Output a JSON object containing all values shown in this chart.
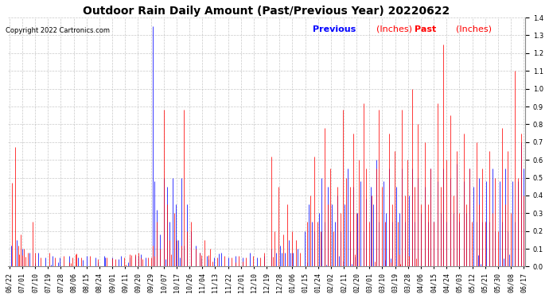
{
  "title": "Outdoor Rain Daily Amount (Past/Previous Year) 20220622",
  "copyright": "Copyright 2022 Cartronics.com",
  "legend_previous": "Previous",
  "legend_past": "Past",
  "legend_units": "(Inches)",
  "previous_color": "#0000ff",
  "past_color": "#ff0000",
  "background_color": "#ffffff",
  "grid_color": "#bbbbbb",
  "ylim": [
    0.0,
    1.4
  ],
  "yticks": [
    0.0,
    0.1,
    0.2,
    0.3,
    0.4,
    0.5,
    0.6,
    0.7,
    0.8,
    0.9,
    1.0,
    1.1,
    1.2,
    1.3,
    1.4
  ],
  "title_fontsize": 10,
  "tick_fontsize": 6,
  "copyright_fontsize": 6,
  "legend_fontsize": 8,
  "xtick_labels": [
    "06/22",
    "07/01",
    "07/10",
    "07/19",
    "07/28",
    "08/06",
    "08/15",
    "08/24",
    "09/01",
    "09/11",
    "09/20",
    "09/29",
    "10/07",
    "10/17",
    "10/26",
    "11/04",
    "11/13",
    "11/22",
    "12/01",
    "12/10",
    "12/19",
    "12/28",
    "01/06",
    "01/15",
    "01/24",
    "02/02",
    "02/11",
    "02/20",
    "03/01",
    "03/10",
    "03/19",
    "03/28",
    "04/06",
    "04/15",
    "04/24",
    "05/03",
    "05/12",
    "05/21",
    "05/30",
    "06/08",
    "06/17"
  ]
}
